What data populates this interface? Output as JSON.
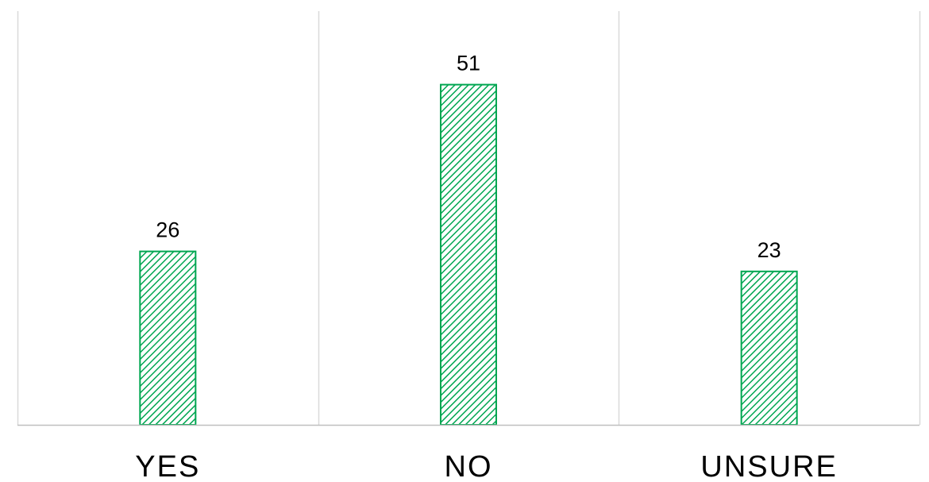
{
  "chart_data": {
    "type": "bar",
    "categories": [
      "YES",
      "NO",
      "UNSURE"
    ],
    "values": [
      26,
      51,
      23
    ],
    "title": "",
    "xlabel": "",
    "ylabel": "",
    "ylim": [
      0,
      60
    ],
    "grid": "vertical category separators",
    "legend": "none",
    "colors": {
      "bar_stroke": "#00a651",
      "bar_hatch": "#00a651",
      "bar_background": "#ffffff",
      "grid": "#d9d9d9",
      "axis": "#bfbfbf"
    }
  }
}
